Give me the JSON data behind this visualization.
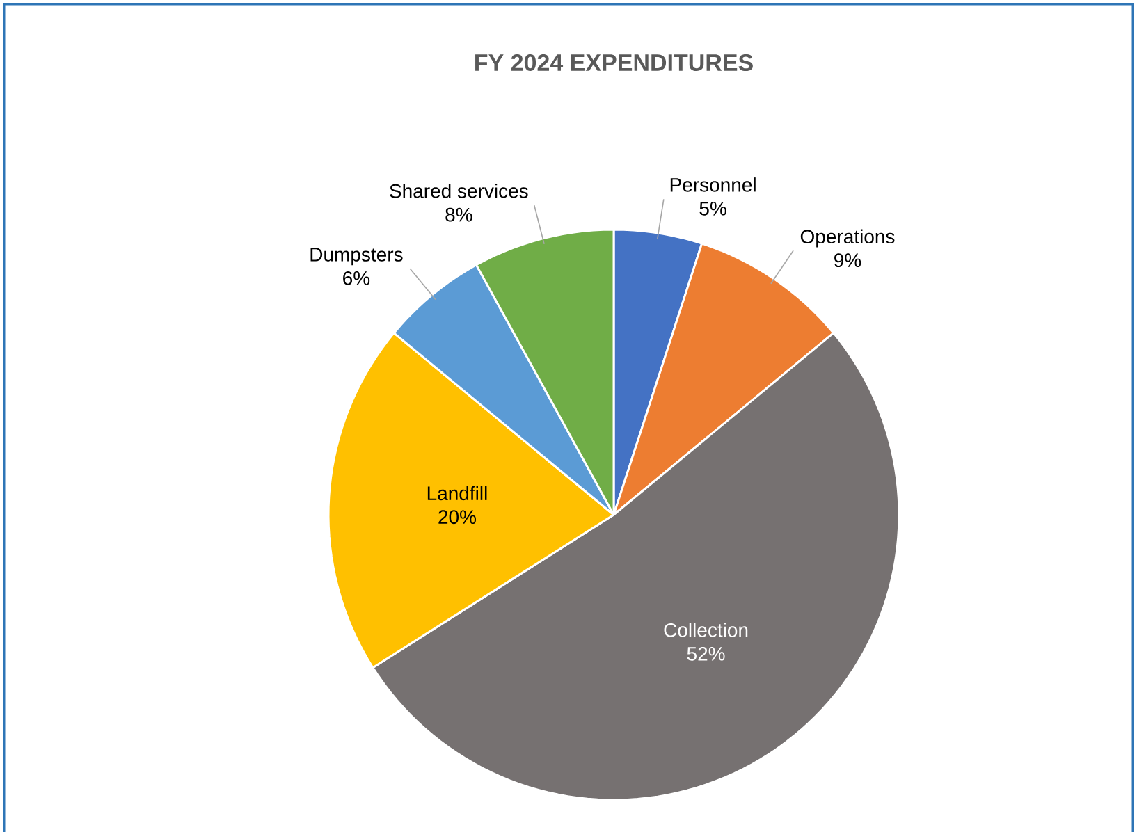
{
  "chart_data": {
    "type": "pie",
    "title": "FY 2024 EXPENDITURES",
    "categories": [
      "Personnel",
      "Operations",
      "Collection",
      "Landfill",
      "Dumpsters",
      "Shared services"
    ],
    "values": [
      5,
      9,
      52,
      20,
      6,
      8
    ],
    "value_labels": [
      "5%",
      "9%",
      "52%",
      "20%",
      "6%",
      "8%"
    ],
    "colors": [
      "#4472c4",
      "#ed7d31",
      "#767171",
      "#ffc000",
      "#5b9bd5",
      "#70ad47"
    ]
  }
}
